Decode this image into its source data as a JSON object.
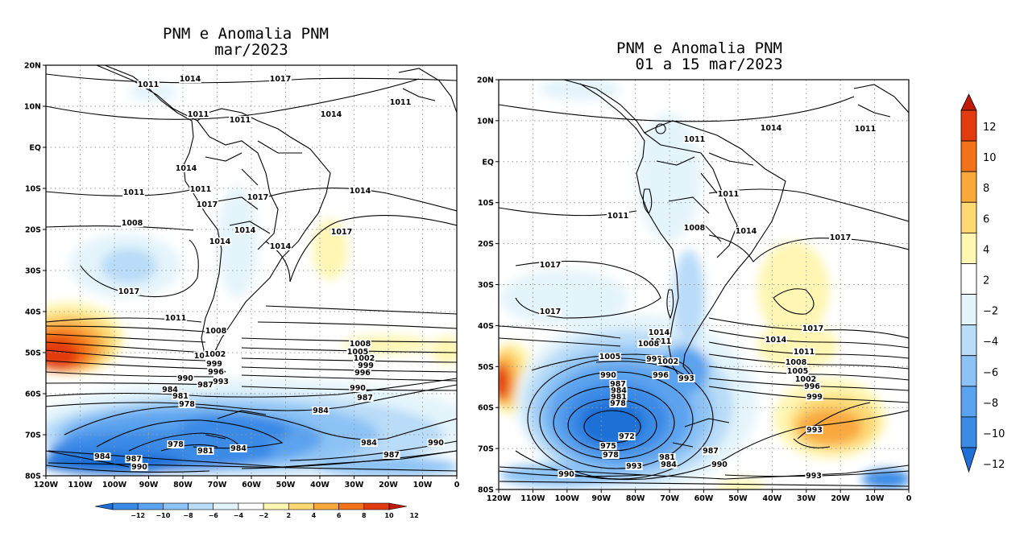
{
  "colors": {
    "neg12": "#1f6fd6",
    "neg10": "#3b8ae6",
    "neg8": "#5ca3ef",
    "neg6": "#8cc2f5",
    "neg4": "#b9dcf8",
    "neg2": "#e4f4fb",
    "zero": "#ffffff",
    "pos2": "#fff6b4",
    "pos4": "#fdd873",
    "pos6": "#f9a83c",
    "pos8": "#f37219",
    "pos10": "#e33b10",
    "pos12": "#c01a0a"
  },
  "colorbar": {
    "labels": [
      "12",
      "10",
      "8",
      "6",
      "4",
      "2",
      "−2",
      "−4",
      "−6",
      "−8",
      "−10",
      "−12"
    ]
  },
  "hcolorbar": {
    "labels": [
      "−12",
      "−10",
      "−8",
      "−6",
      "−4",
      "−2",
      "2",
      "4",
      "6",
      "8",
      "10",
      "12"
    ]
  },
  "left_map": {
    "title_line1": "PNM e Anomalia PNM",
    "title_line2": "mar/2023",
    "lat_labels": [
      "20N",
      "10N",
      "EQ",
      "10S",
      "20S",
      "30S",
      "40S",
      "50S",
      "60S",
      "70S",
      "80S"
    ],
    "lon_labels": [
      "120W",
      "110W",
      "100W",
      "90W",
      "80W",
      "70W",
      "60W",
      "50W",
      "40W",
      "30W",
      "20W",
      "10W",
      "0"
    ],
    "contour_labels": [
      "1014",
      "1017",
      "1011",
      "1011",
      "1011",
      "1014",
      "1011",
      "1014",
      "1011",
      "1017",
      "1014",
      "1011",
      "1017",
      "1008",
      "1014",
      "1017",
      "1014",
      "1017",
      "1014",
      "1011",
      "1008",
      "1005",
      "1002",
      "999",
      "996",
      "993",
      "990",
      "987",
      "984",
      "981",
      "978",
      "978",
      "981",
      "984",
      "987",
      "990",
      "984",
      "1008",
      "1005",
      "1002",
      "999",
      "996",
      "990",
      "987",
      "984",
      "984",
      "987",
      "990"
    ]
  },
  "right_map": {
    "title_line1": "PNM e Anomalia PNM",
    "title_line2": "01 a 15 mar/2023",
    "lat_labels": [
      "20N",
      "10N",
      "EQ",
      "10S",
      "20S",
      "30S",
      "40S",
      "50S",
      "60S",
      "70S",
      "80S"
    ],
    "lon_labels": [
      "120W",
      "110W",
      "100W",
      "90W",
      "80W",
      "70W",
      "60W",
      "50W",
      "40W",
      "30W",
      "20W",
      "10W",
      "0"
    ],
    "contour_labels": [
      "1014",
      "1011",
      "1011",
      "1011",
      "1011",
      "1008",
      "1014",
      "1017",
      "1017",
      "1017",
      "1017",
      "1014",
      "1011",
      "1008",
      "1005",
      "1002",
      "999",
      "996",
      "1014",
      "1011",
      "1008",
      "1005",
      "999",
      "1002",
      "996",
      "993",
      "990",
      "987",
      "984",
      "981",
      "978",
      "972",
      "975",
      "978",
      "981",
      "993",
      "984",
      "987",
      "990",
      "990",
      "993",
      "993",
      "1017",
      "1014",
      "1011"
    ]
  }
}
